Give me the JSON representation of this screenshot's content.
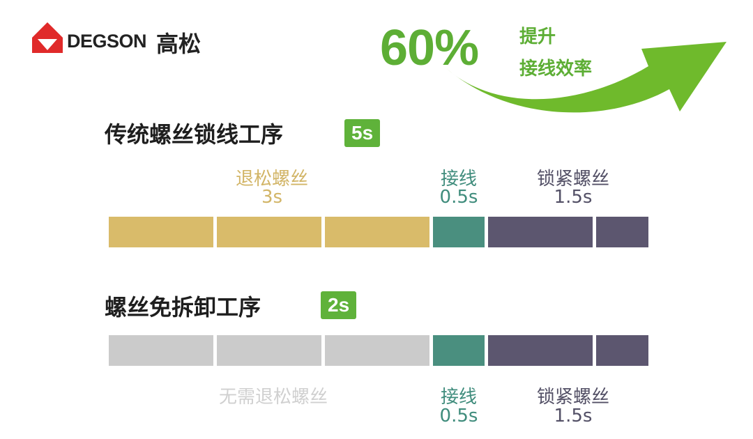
{
  "logo": {
    "brand": "DEGSON",
    "brand_cn": "高松"
  },
  "headline": {
    "percent": "60%",
    "line1": "提升",
    "line2": "接线效率"
  },
  "colors": {
    "accent_green": "#5fb23a",
    "unscrew": "#d9bb6a",
    "wiring": "#4a8f7f",
    "tighten": "#5c566f",
    "skipped": "#cbcbcb"
  },
  "traditional": {
    "title": "传统螺丝锁线工序",
    "total": "5s",
    "steps": [
      {
        "name": "退松螺丝",
        "time": "3s"
      },
      {
        "name": "接线",
        "time": "0.5s"
      },
      {
        "name": "锁紧螺丝",
        "time": "1.5s"
      }
    ]
  },
  "nodisassembly": {
    "title": "螺丝免拆卸工序",
    "total": "2s",
    "steps": [
      {
        "name": "无需退松螺丝",
        "time": ""
      },
      {
        "name": "接线",
        "time": "0.5s"
      },
      {
        "name": "锁紧螺丝",
        "time": "1.5s"
      }
    ]
  }
}
